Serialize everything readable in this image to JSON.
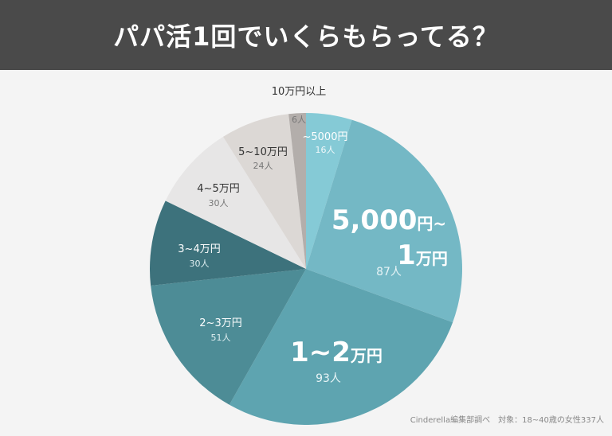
{
  "header": {
    "title": "パパ活1回でいくらもらってる？"
  },
  "source_note": "Cinderella編集部調べ　対象：18~40歳の女性337人",
  "colors": {
    "header_bg": "#4a4a4a",
    "page_bg": "#f4f4f4"
  },
  "chart_data": {
    "type": "pie",
    "title": "パパ活1回でいくらもらってる？",
    "unit": "人",
    "total": 337,
    "start": "top, clockwise",
    "slices": [
      {
        "label": "~5000円",
        "value": 16,
        "value_label": "16人",
        "color": "#85cad6"
      },
      {
        "label": "5,000円~1万円",
        "value": 87,
        "value_label": "87人",
        "color": "#74b8c5"
      },
      {
        "label": "1~2万円",
        "value": 93,
        "value_label": "93人",
        "color": "#5ea4b0"
      },
      {
        "label": "2~3万円",
        "value": 51,
        "value_label": "51人",
        "color": "#4d8c96"
      },
      {
        "label": "3~4万円",
        "value": 30,
        "value_label": "30人",
        "color": "#3d727c"
      },
      {
        "label": "4~5万円",
        "value": 30,
        "value_label": "30人",
        "color": "#e7e6e6"
      },
      {
        "label": "5~10万円",
        "value": 24,
        "value_label": "24人",
        "color": "#dcd8d5"
      },
      {
        "label": "10万円以上",
        "value": 6,
        "value_label": "6人",
        "color": "#b3aeab"
      }
    ]
  }
}
